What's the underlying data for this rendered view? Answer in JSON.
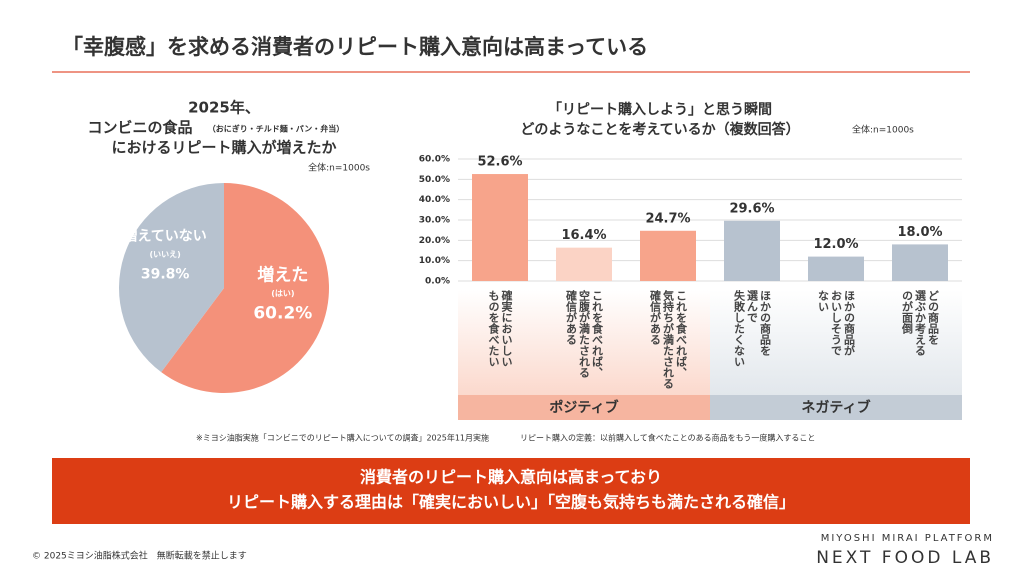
{
  "header": {
    "title": "「幸腹感」を求める消費者のリピート購入意向は高まっている"
  },
  "chart_data": [
    {
      "type": "pie",
      "title_lines": [
        "2025年、",
        "コンビニの食品",
        "におけるリピート購入が増えたか"
      ],
      "title_aside": "（おにぎり・チルド麺・パン・弁当）",
      "note": "全体:n=1000s",
      "categories": [
        "増えた",
        "増えていない"
      ],
      "sublabels": [
        "(はい)",
        "(いいえ)"
      ],
      "values": [
        60.2,
        39.8
      ],
      "value_labels": [
        "60.2%",
        "39.8%"
      ],
      "colors": [
        "#f4917a",
        "#b7c2cf"
      ]
    },
    {
      "type": "bar",
      "title_lines": [
        "「リピート購入しよう」と思う瞬間",
        "どのようなことを考えているか（複数回答）"
      ],
      "note": "全体:n=1000s",
      "ylim": [
        0,
        60
      ],
      "yticks": [
        {
          "value": 0,
          "label": "0.0%"
        },
        {
          "value": 10,
          "label": "10.0%"
        },
        {
          "value": 20,
          "label": "20.0%"
        },
        {
          "value": 30,
          "label": "30.0%"
        },
        {
          "value": 40,
          "label": "40.0%"
        },
        {
          "value": 50,
          "label": "50.0%"
        },
        {
          "value": 60,
          "label": "60.0%"
        }
      ],
      "grid": true,
      "series": [
        {
          "name": "ポジティブ",
          "color": "#f6b5a0",
          "colors": [
            "#f7a48b",
            "#fbd3c5",
            "#f7a48b"
          ],
          "categories": [
            "確実においしい\nものを食べたい",
            "これを食べれば、\n空腹が満たされる\n確信がある",
            "これを食べれば、\n気持ちが満たされる\n確信がある"
          ],
          "values": [
            52.6,
            16.4,
            24.7
          ],
          "value_labels": [
            "52.6%",
            "16.4%",
            "24.7%"
          ]
        },
        {
          "name": "ネガティブ",
          "color": "#c3ccd6",
          "colors": [
            "#b7c2cf",
            "#b7c2cf",
            "#b7c2cf"
          ],
          "categories": [
            "ほかの商品を\n選んで\n失敗したくない",
            "ほかの商品が\nおいしそうで\nない",
            "どの商品を\n選ぶか考える\nのが面倒"
          ],
          "values": [
            29.6,
            12.0,
            18.0
          ],
          "value_labels": [
            "29.6%",
            "12.0%",
            "18.0%"
          ]
        }
      ]
    }
  ],
  "notes": [
    "※ミヨシ油脂実施「コンビニでのリピート購入についての調査」2025年11月実施",
    "リピート購入の定義：以前購入して食べたことのある商品をもう一度購入すること"
  ],
  "banner": [
    "消費者のリピート購入意向は高まっており",
    "リピート購入する理由は「確実においしい」「空腹も気持ちも満たされる確信」"
  ],
  "footer": {
    "copyright": "© 2025ミヨシ油脂株式会社　無断転載を禁止します",
    "brand_top": "MIYOSHI MIRAI PLATFORM",
    "brand": "NEXT FOOD LAB"
  }
}
